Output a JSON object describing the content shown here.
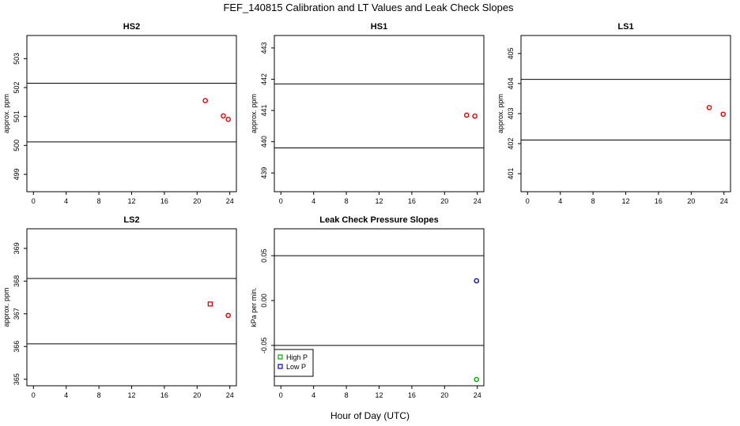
{
  "figure": {
    "title": "FEF_140815  Calibration and LT Values and Leak Check Slopes",
    "xlabel": "Hour of Day (UTC)"
  },
  "colors": {
    "red": "#dd0000",
    "green": "#00aa00",
    "blue": "#0000dd",
    "axis": "#000000"
  },
  "chart_data": [
    {
      "type": "scatter",
      "title": "HS2",
      "ylabel": "approx. ppm",
      "xlim": [
        -0.8,
        24.8
      ],
      "ylim": [
        498.4,
        503.8
      ],
      "xticks": [
        0,
        4,
        8,
        12,
        16,
        20,
        24
      ],
      "yticks": [
        499,
        500,
        501,
        502,
        503
      ],
      "hlines": [
        500.12,
        502.15
      ],
      "series": [
        {
          "color": "red",
          "marker": "circle",
          "x": [
            21.0,
            23.2,
            23.8
          ],
          "y": [
            501.55,
            501.02,
            500.9
          ]
        }
      ]
    },
    {
      "type": "scatter",
      "title": "HS1",
      "ylabel": "approx. ppm",
      "xlim": [
        -0.8,
        24.8
      ],
      "ylim": [
        438.4,
        443.4
      ],
      "xticks": [
        0,
        4,
        8,
        12,
        16,
        20,
        24
      ],
      "yticks": [
        439,
        440,
        441,
        442,
        443
      ],
      "hlines": [
        439.8,
        441.85
      ],
      "series": [
        {
          "color": "red",
          "marker": "circle",
          "x": [
            22.7,
            23.7
          ],
          "y": [
            440.85,
            440.82
          ]
        }
      ]
    },
    {
      "type": "scatter",
      "title": "LS1",
      "ylabel": "approx. ppm",
      "xlim": [
        -0.8,
        24.8
      ],
      "ylim": [
        400.4,
        405.6
      ],
      "xticks": [
        0,
        4,
        8,
        12,
        16,
        20,
        24
      ],
      "yticks": [
        401,
        402,
        403,
        404,
        405
      ],
      "hlines": [
        402.12,
        404.14
      ],
      "series": [
        {
          "color": "red",
          "marker": "circle",
          "x": [
            22.2,
            23.9
          ],
          "y": [
            403.2,
            402.98
          ]
        }
      ]
    },
    {
      "type": "scatter",
      "title": "LS2",
      "ylabel": "approx. ppm",
      "xlim": [
        -0.8,
        24.8
      ],
      "ylim": [
        364.8,
        369.6
      ],
      "xticks": [
        0,
        4,
        8,
        12,
        16,
        20,
        24
      ],
      "yticks": [
        365,
        366,
        367,
        368,
        369
      ],
      "hlines": [
        366.08,
        368.08
      ],
      "series": [
        {
          "color": "red",
          "marker": "square",
          "x": [
            21.6
          ],
          "y": [
            367.3
          ]
        },
        {
          "color": "red",
          "marker": "circle",
          "x": [
            23.8
          ],
          "y": [
            366.95
          ]
        }
      ]
    },
    {
      "type": "scatter",
      "title": "Leak Check Pressure Slopes",
      "ylabel": "kPa per min.",
      "xlim": [
        -0.8,
        24.8
      ],
      "ylim": [
        -0.095,
        0.08
      ],
      "xticks": [
        0,
        4,
        8,
        12,
        16,
        20,
        24
      ],
      "yticks": [
        -0.05,
        0.0,
        0.05
      ],
      "ytick_labels": [
        "-0.05",
        "0.00",
        "0.05"
      ],
      "hlines": [
        -0.05,
        0.05
      ],
      "legend": {
        "placement": "bottom-left",
        "entries": [
          {
            "label": "High P",
            "color": "green"
          },
          {
            "label": "Low P",
            "color": "blue"
          }
        ]
      },
      "series": [
        {
          "name": "High P",
          "color": "green",
          "marker": "circle",
          "x": [
            23.9
          ],
          "y": [
            -0.088
          ]
        },
        {
          "name": "Low P",
          "color": "blue",
          "marker": "circle",
          "x": [
            23.9
          ],
          "y": [
            0.022
          ]
        }
      ]
    }
  ]
}
